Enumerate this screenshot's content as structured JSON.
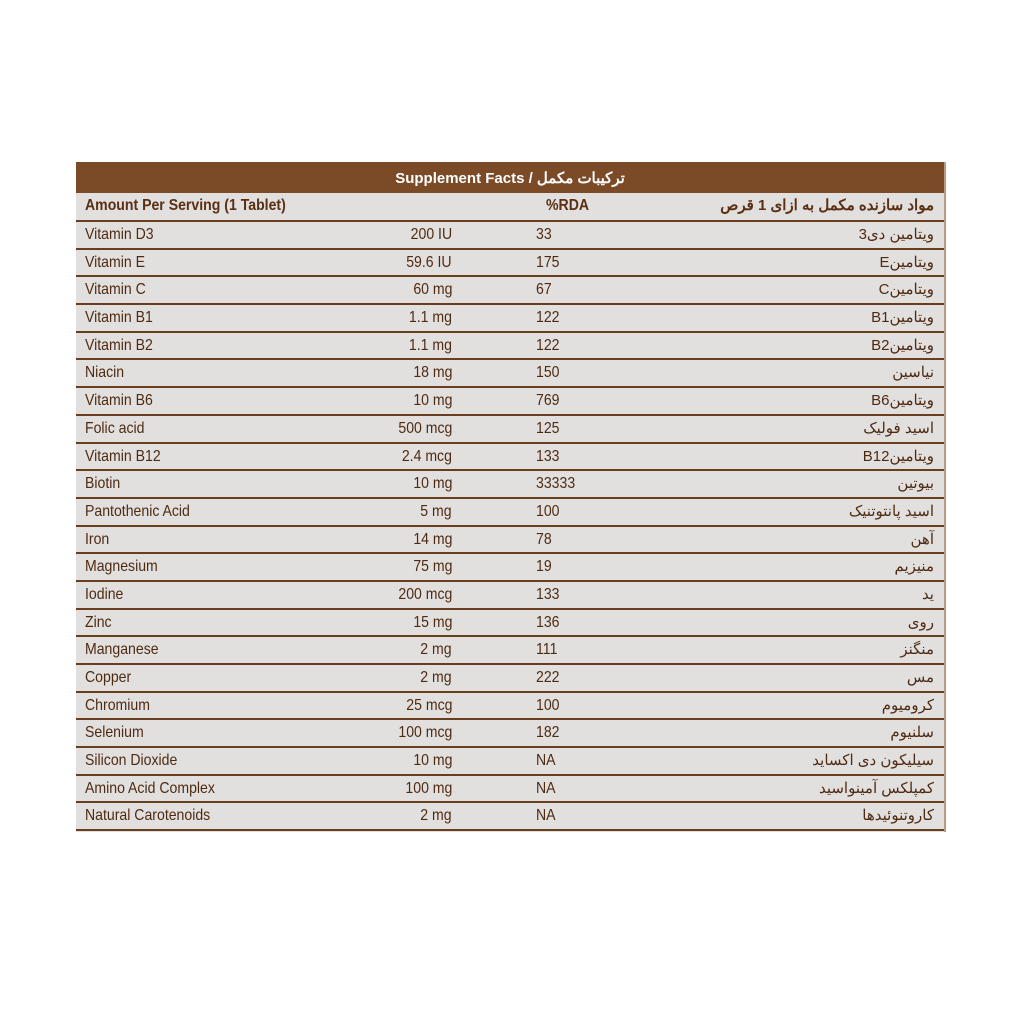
{
  "title": "Supplement Facts / ترکیبات مکمل",
  "header": {
    "amount": "Amount Per Serving (1 Tablet)",
    "rda": "%RDA",
    "fa": "مواد سازنده مکمل به ازای 1 قرص"
  },
  "rows": [
    {
      "name": "Vitamin D3",
      "amount": "200 IU",
      "rda": "33",
      "fa": "ویتامین دی3"
    },
    {
      "name": "Vitamin E",
      "amount": "59.6 IU",
      "rda": "175",
      "fa": "ویتامینE"
    },
    {
      "name": "Vitamin C",
      "amount": "60 mg",
      "rda": "67",
      "fa": "ویتامینC"
    },
    {
      "name": "Vitamin B1",
      "amount": "1.1 mg",
      "rda": "122",
      "fa": "ویتامینB1"
    },
    {
      "name": "Vitamin B2",
      "amount": "1.1 mg",
      "rda": "122",
      "fa": "ویتامینB2"
    },
    {
      "name": "Niacin",
      "amount": "18 mg",
      "rda": "150",
      "fa": "نیاسین"
    },
    {
      "name": "Vitamin B6",
      "amount": "10 mg",
      "rda": "769",
      "fa": "ویتامینB6"
    },
    {
      "name": "Folic acid",
      "amount": "500 mcg",
      "rda": "125",
      "fa": "اسید فولیک"
    },
    {
      "name": "Vitamin B12",
      "amount": "2.4 mcg",
      "rda": "133",
      "fa": "ویتامینB12"
    },
    {
      "name": "Biotin",
      "amount": "10 mg",
      "rda": "33333",
      "fa": "بیوتین"
    },
    {
      "name": "Pantothenic Acid",
      "amount": "5 mg",
      "rda": "100",
      "fa": "اسید پانتوتنیک"
    },
    {
      "name": "Iron",
      "amount": "14 mg",
      "rda": "78",
      "fa": "آهن"
    },
    {
      "name": "Magnesium",
      "amount": "75 mg",
      "rda": "19",
      "fa": "منیزیم"
    },
    {
      "name": "Iodine",
      "amount": "200 mcg",
      "rda": "133",
      "fa": "ید"
    },
    {
      "name": "Zinc",
      "amount": "15 mg",
      "rda": "136",
      "fa": "روی"
    },
    {
      "name": "Manganese",
      "amount": "2 mg",
      "rda": "111",
      "fa": "منگنز"
    },
    {
      "name": "Copper",
      "amount": "2 mg",
      "rda": "222",
      "fa": "مس"
    },
    {
      "name": "Chromium",
      "amount": "25 mcg",
      "rda": "100",
      "fa": "کروميوم"
    },
    {
      "name": "Selenium",
      "amount": "100 mcg",
      "rda": "182",
      "fa": "سلنیوم"
    },
    {
      "name": "Silicon Dioxide",
      "amount": "10 mg",
      "rda": "NA",
      "fa": "سیلیکون دی اکساید"
    },
    {
      "name": "Amino Acid Complex",
      "amount": "100 mg",
      "rda": "NA",
      "fa": "کمپلکس آمینواسید"
    },
    {
      "name": "Natural Carotenoids",
      "amount": "2 mg",
      "rda": "NA",
      "fa": "کاروتنوئیدها"
    }
  ],
  "colors": {
    "band": "#7b4a26",
    "text": "#4e2a12",
    "background": "#e2e0de"
  }
}
